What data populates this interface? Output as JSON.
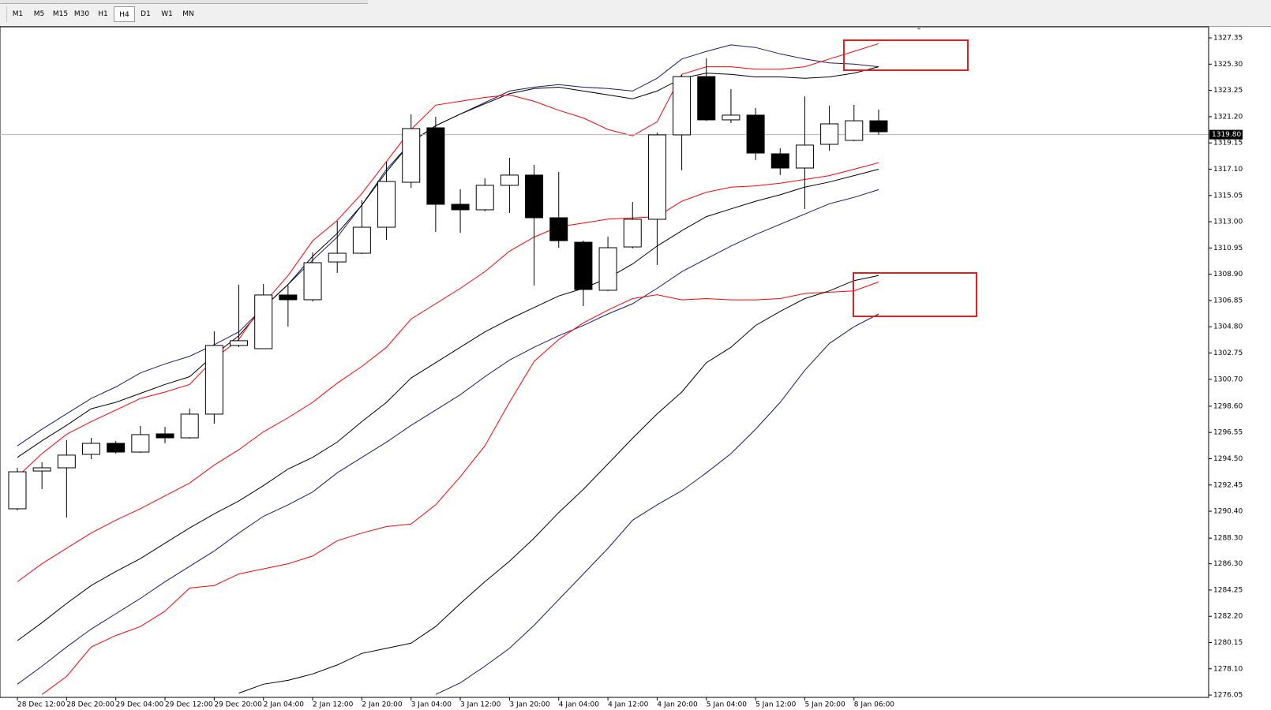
{
  "toolbar": {
    "timeframes": [
      "M1",
      "M5",
      "M15",
      "M30",
      "H1",
      "H4",
      "D1",
      "W1",
      "MN"
    ],
    "active": "H4"
  },
  "chart_data": {
    "type": "candlestick",
    "categories": [
      "28 Dec 12:00",
      null,
      "28 Dec 20:00",
      null,
      "29 Dec 04:00",
      null,
      "29 Dec 12:00",
      null,
      "29 Dec 20:00",
      null,
      "2 Jan 04:00",
      null,
      "2 Jan 12:00",
      null,
      "2 Jan 20:00",
      null,
      "3 Jan 04:00",
      null,
      "3 Jan 12:00",
      null,
      "3 Jan 20:00",
      null,
      "4 Jan 04:00",
      null,
      "4 Jan 12:00",
      null,
      "4 Jan 20:00",
      null,
      "5 Jan 04:00",
      null,
      "5 Jan 12:00",
      null,
      "5 Jan 20:00",
      null,
      "8 Jan 06:00",
      null
    ],
    "open": [
      1290.59,
      1293.54,
      1293.79,
      1294.84,
      1295.7,
      1295.02,
      1296.44,
      1296.13,
      1297.98,
      1303.34,
      1303.09,
      1307.28,
      1306.91,
      1309.86,
      1310.54,
      1312.57,
      1316.08,
      1320.33,
      1314.36,
      1313.93,
      1315.84,
      1316.64,
      1313.31,
      1311.4,
      1307.65,
      1311.03,
      1313.19,
      1319.78,
      1324.33,
      1320.95,
      1321.32,
      1318.3,
      1317.19,
      1319.04,
      1319.35,
      1320.88
    ],
    "high": [
      1293.79,
      1294.22,
      1295.95,
      1296.13,
      1295.88,
      1297.05,
      1296.99,
      1298.41,
      1304.44,
      1308.08,
      1308.14,
      1308.02,
      1310.6,
      1313.06,
      1314.67,
      1317.68,
      1321.38,
      1321.19,
      1315.53,
      1316.39,
      1317.99,
      1317.44,
      1316.88,
      1311.52,
      1311.83,
      1314.54,
      1319.96,
      1324.46,
      1325.75,
      1323.35,
      1321.87,
      1318.73,
      1322.79,
      1322.05,
      1322.12,
      1321.75
    ],
    "low": [
      1290.47,
      1292.13,
      1289.91,
      1294.47,
      1294.9,
      1294.96,
      1295.7,
      1296.07,
      1297.24,
      1303.21,
      1303.09,
      1304.81,
      1306.78,
      1309.0,
      1310.48,
      1311.59,
      1315.65,
      1312.2,
      1312.14,
      1313.8,
      1313.68,
      1308.02,
      1310.97,
      1306.41,
      1307.58,
      1310.91,
      1309.62,
      1317.01,
      1320.88,
      1320.7,
      1317.81,
      1316.64,
      1313.99,
      1318.54,
      1319.28,
      1319.78
    ],
    "close": [
      1293.48,
      1293.79,
      1294.78,
      1295.7,
      1295.02,
      1296.38,
      1296.13,
      1297.98,
      1303.34,
      1303.71,
      1307.28,
      1306.91,
      1309.8,
      1310.54,
      1312.57,
      1316.14,
      1320.27,
      1314.36,
      1313.93,
      1315.84,
      1316.64,
      1313.31,
      1311.52,
      1307.71,
      1310.97,
      1313.19,
      1319.78,
      1324.33,
      1320.95,
      1321.32,
      1318.36,
      1317.19,
      1318.98,
      1320.64,
      1320.88,
      1320.02
    ],
    "bull_color": "#ffffff",
    "bear_color": "#000000",
    "series": [
      {
        "color": "#191970",
        "values": [
          1295.5,
          1296.8,
          1298.0,
          1299.2,
          1300.1,
          1301.2,
          1301.9,
          1302.5,
          1303.4,
          1304.4,
          1306.3,
          1308.1,
          1310.0,
          1311.8,
          1314.3,
          1317.1,
          1319.2,
          1320.5,
          1321.4,
          1322.3,
          1323.2,
          1323.5,
          1323.7,
          1323.5,
          1323.4,
          1323.2,
          1324.2,
          1325.7,
          1326.3,
          1326.8,
          1326.6,
          1326.1,
          1325.7,
          1325.4,
          1325.3,
          1325.1
        ]
      },
      {
        "color": "#000000",
        "values": [
          1294.6,
          1295.9,
          1297.1,
          1298.4,
          1298.9,
          1299.6,
          1300.3,
          1300.9,
          1302.6,
          1304.1,
          1306.3,
          1308.1,
          1310.3,
          1312.1,
          1314.3,
          1316.9,
          1319.2,
          1320.5,
          1321.4,
          1322.2,
          1323.0,
          1323.4,
          1323.5,
          1323.2,
          1322.9,
          1322.6,
          1323.2,
          1324.2,
          1324.6,
          1324.5,
          1324.3,
          1324.3,
          1324.2,
          1324.3,
          1324.6,
          1325.1
        ]
      },
      {
        "color": "#ff0000",
        "values": [
          1293.1,
          1294.9,
          1296.4,
          1297.4,
          1298.3,
          1299.2,
          1299.7,
          1300.3,
          1302.3,
          1303.8,
          1306.6,
          1308.8,
          1311.5,
          1313.1,
          1315.2,
          1317.7,
          1320.2,
          1322.1,
          1322.4,
          1322.7,
          1322.9,
          1322.4,
          1321.7,
          1321.1,
          1320.2,
          1319.7,
          1320.8,
          1324.5,
          1325.1,
          1325.1,
          1324.9,
          1324.9,
          1325.1,
          1325.7,
          1326.3,
          1326.9
        ]
      },
      {
        "color": "#ff0000",
        "values": [
          1284.9,
          1286.3,
          1287.5,
          1288.7,
          1289.7,
          1290.6,
          1291.6,
          1292.6,
          1294.0,
          1295.2,
          1296.6,
          1297.7,
          1298.9,
          1300.4,
          1301.7,
          1303.2,
          1305.4,
          1306.6,
          1307.8,
          1309.1,
          1310.7,
          1311.8,
          1312.6,
          1312.9,
          1313.2,
          1313.3,
          1313.4,
          1314.6,
          1315.3,
          1315.7,
          1315.8,
          1316.0,
          1316.3,
          1316.6,
          1317.1,
          1317.6
        ]
      },
      {
        "color": "#000000",
        "values": [
          1280.3,
          1281.7,
          1283.2,
          1284.6,
          1285.7,
          1286.7,
          1287.9,
          1289.1,
          1290.2,
          1291.2,
          1292.4,
          1293.7,
          1294.6,
          1295.8,
          1297.4,
          1298.9,
          1300.8,
          1302.0,
          1303.2,
          1304.4,
          1305.4,
          1306.3,
          1307.2,
          1307.8,
          1308.6,
          1309.7,
          1311.1,
          1312.3,
          1313.4,
          1314.0,
          1314.6,
          1315.1,
          1315.7,
          1316.1,
          1316.6,
          1317.1
        ]
      },
      {
        "color": "#191970",
        "values": [
          1276.9,
          1278.3,
          1279.8,
          1281.2,
          1282.4,
          1283.6,
          1284.9,
          1286.1,
          1287.3,
          1288.7,
          1290.0,
          1290.9,
          1291.9,
          1293.4,
          1294.6,
          1295.8,
          1297.1,
          1298.3,
          1299.5,
          1300.9,
          1302.2,
          1303.2,
          1304.1,
          1304.9,
          1305.8,
          1306.6,
          1307.8,
          1309.1,
          1310.1,
          1311.1,
          1312.0,
          1312.8,
          1313.6,
          1314.4,
          1314.9,
          1315.5
        ]
      },
      {
        "color": "#ff0000",
        "values": [
          null,
          1276.1,
          1277.5,
          1279.8,
          1280.7,
          1281.4,
          1282.6,
          1284.4,
          1284.6,
          1285.5,
          1285.9,
          1286.3,
          1286.9,
          1288.1,
          1288.7,
          1289.2,
          1289.4,
          1290.9,
          1293.1,
          1295.5,
          1298.9,
          1302.1,
          1303.8,
          1305.1,
          1306.1,
          1307.0,
          1307.3,
          1306.9,
          1307.0,
          1306.9,
          1306.9,
          1307.0,
          1307.4,
          1307.5,
          1307.6,
          1308.3
        ]
      },
      {
        "color": "#000000",
        "values": [
          null,
          null,
          null,
          null,
          null,
          null,
          null,
          null,
          null,
          1276.2,
          1276.9,
          1277.2,
          1277.7,
          1278.4,
          1279.3,
          1279.7,
          1280.1,
          1281.4,
          1283.2,
          1284.9,
          1286.5,
          1288.3,
          1290.3,
          1292.1,
          1294.1,
          1296.1,
          1298.0,
          1299.7,
          1302.0,
          1303.2,
          1304.9,
          1306.0,
          1307.0,
          1307.6,
          1308.4,
          1308.8
        ]
      },
      {
        "color": "#191970",
        "values": [
          null,
          null,
          null,
          null,
          null,
          null,
          null,
          null,
          null,
          null,
          null,
          null,
          null,
          null,
          null,
          null,
          null,
          1276.1,
          1277.0,
          1278.3,
          1279.7,
          1281.5,
          1283.5,
          1285.5,
          1287.5,
          1289.7,
          1290.9,
          1292.0,
          1293.4,
          1294.9,
          1296.8,
          1298.9,
          1301.4,
          1303.5,
          1304.8,
          1305.8
        ]
      }
    ],
    "current_price": {
      "value": 1319.8,
      "label": "1319.80"
    },
    "ylim": [
      1275.87,
      1328.09
    ],
    "yticks": [
      1327.35,
      {
        "value": 1325.3,
        "label": "1325.30"
      },
      1323.25,
      {
        "value": 1321.2,
        "label": "1321.20"
      },
      1319.15,
      {
        "value": 1317.1,
        "label": "1317.10"
      },
      1315.05,
      {
        "value": 1313,
        "label": "1313.00"
      },
      1310.95,
      {
        "value": 1308.9,
        "label": "1308.90"
      },
      1306.85,
      {
        "value": 1304.8,
        "label": "1304.80"
      },
      1302.75,
      {
        "value": 1300.7,
        "label": "1300.70"
      },
      {
        "value": 1298.6,
        "label": "1298.60"
      },
      1296.55,
      {
        "value": 1294.5,
        "label": "1294.50"
      },
      1292.45,
      {
        "value": 1290.4,
        "label": "1290.40"
      },
      {
        "value": 1288.3,
        "label": "1288.30"
      },
      {
        "value": 1286.3,
        "label": "1286.30"
      },
      1284.25,
      {
        "value": 1282.2,
        "label": "1282.20"
      },
      1280.15,
      {
        "value": 1278.1,
        "label": "1278.10"
      },
      1276.05
    ],
    "grid": false
  }
}
